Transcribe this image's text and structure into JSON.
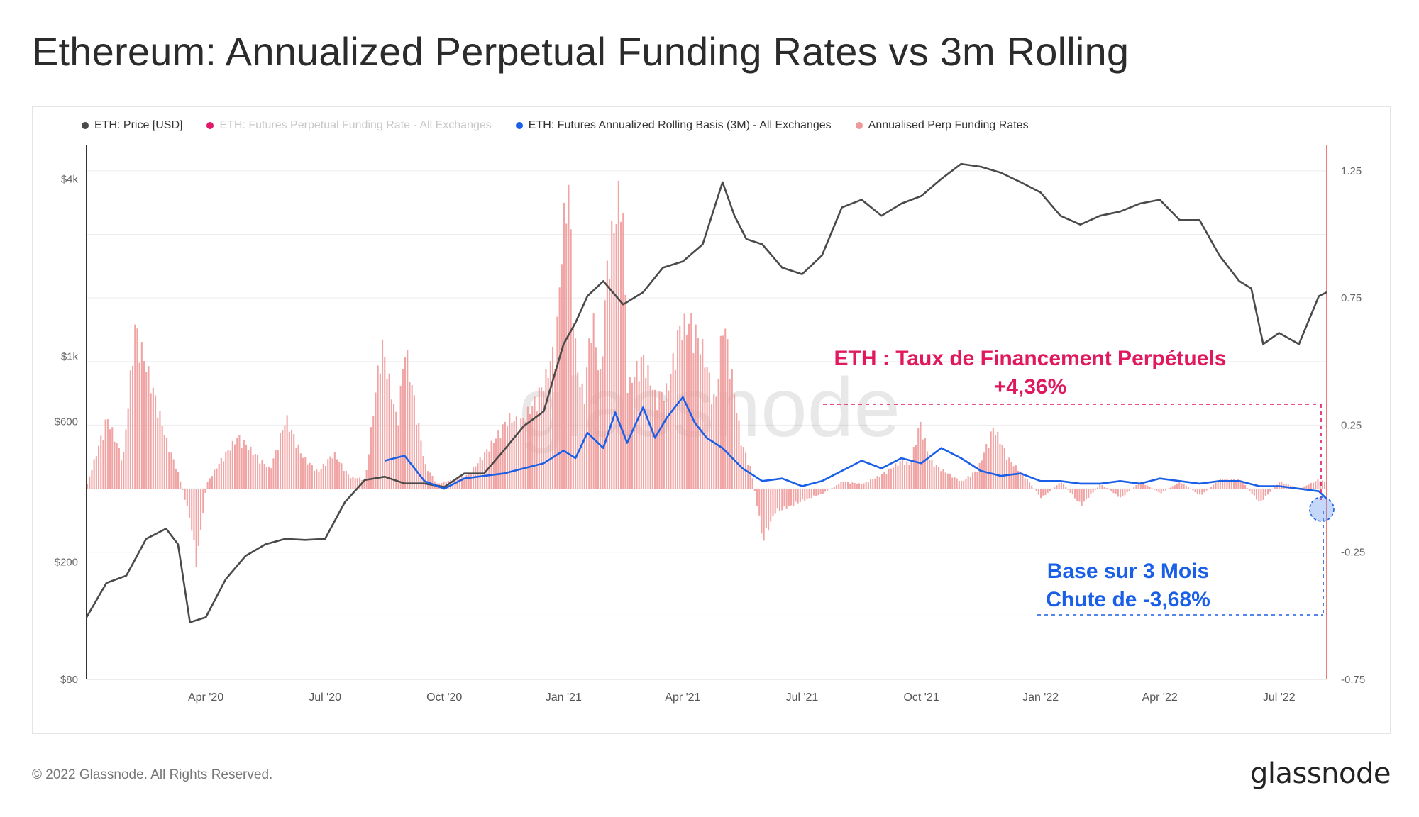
{
  "title": "Ethereum: Annualized Perpetual Funding Rates vs 3m Rolling",
  "legend": [
    {
      "label": "ETH: Price [USD]",
      "color": "#4a4a4a",
      "muted": false
    },
    {
      "label": "ETH: Futures Perpetual Funding Rate - All Exchanges",
      "color": "#e0196b",
      "muted": true
    },
    {
      "label": "ETH: Futures Annualized Rolling Basis (3M) - All Exchanges",
      "color": "#1a5fe8",
      "muted": false
    },
    {
      "label": "Annualised Perp Funding Rates",
      "color": "#ef9a9a",
      "muted": false
    }
  ],
  "watermark": "glassnode",
  "annotations": {
    "funding_line1": "ETH : Taux de Financement Perpétuels",
    "funding_line2": "+4,36%",
    "basis_line1": "Base sur 3 Mois",
    "basis_line2": "Chute de -3,68%",
    "funding_color": "#e0195f",
    "basis_color": "#1a5fe8"
  },
  "footer": "© 2022 Glassnode. All Rights Reserved.",
  "brand": "glassnode",
  "chart_data": {
    "type": "line",
    "x_ticks": [
      "Apr '20",
      "Jul '20",
      "Oct '20",
      "Jan '21",
      "Apr '21",
      "Jul '21",
      "Oct '21",
      "Jan '22",
      "Apr '22",
      "Jul '22"
    ],
    "x_tick_pos": [
      2.0,
      5.0,
      8.0,
      11.0,
      14.0,
      17.0,
      20.0,
      23.0,
      26.0,
      29.0
    ],
    "x_range": [
      -1.0,
      30.2
    ],
    "y_left": {
      "label": "ETH: Price [USD]",
      "scale": "log",
      "range": [
        80,
        5200
      ],
      "ticks": [
        80,
        200,
        600,
        1000,
        4000
      ],
      "tick_labels": [
        "$80",
        "$200",
        "$600",
        "$1k",
        "$4k"
      ]
    },
    "y_right": {
      "scale": "linear",
      "range": [
        -0.75,
        1.35
      ],
      "ticks": [
        -0.75,
        -0.25,
        0.25,
        0.75,
        1.25
      ],
      "tick_labels": [
        "-0.75",
        "-0.25",
        "0.25",
        "0.75",
        "1.25"
      ]
    },
    "series": [
      {
        "name": "ETH: Price [USD]",
        "axis": "left",
        "color": "#4a4a4a",
        "x": [
          -1.0,
          -0.5,
          0.0,
          0.5,
          1.0,
          1.3,
          1.6,
          2.0,
          2.5,
          3.0,
          3.5,
          4.0,
          4.5,
          5.0,
          5.5,
          6.0,
          6.5,
          7.0,
          7.5,
          8.0,
          8.5,
          9.0,
          9.5,
          10.0,
          10.5,
          11.0,
          11.3,
          11.6,
          12.0,
          12.5,
          13.0,
          13.5,
          14.0,
          14.5,
          15.0,
          15.3,
          15.6,
          16.0,
          16.5,
          17.0,
          17.5,
          18.0,
          18.5,
          19.0,
          19.5,
          20.0,
          20.5,
          21.0,
          21.5,
          22.0,
          22.5,
          23.0,
          23.5,
          24.0,
          24.5,
          25.0,
          25.5,
          26.0,
          26.5,
          27.0,
          27.5,
          28.0,
          28.3,
          28.6,
          29.0,
          29.5,
          30.0,
          30.2
        ],
        "values": [
          130,
          170,
          180,
          240,
          260,
          230,
          125,
          130,
          175,
          210,
          230,
          240,
          238,
          240,
          320,
          380,
          390,
          370,
          370,
          360,
          400,
          400,
          480,
          580,
          650,
          1100,
          1300,
          1600,
          1800,
          1500,
          1650,
          2000,
          2100,
          2400,
          3900,
          3000,
          2500,
          2400,
          2000,
          1900,
          2200,
          3200,
          3400,
          3000,
          3300,
          3500,
          4000,
          4500,
          4400,
          4200,
          3900,
          3600,
          3000,
          2800,
          3000,
          3100,
          3300,
          3400,
          2900,
          2900,
          2200,
          1800,
          1700,
          1100,
          1200,
          1100,
          1600,
          1650
        ]
      },
      {
        "name": "ETH: Futures Annualized Rolling Basis (3M) - All Exchanges",
        "axis": "right",
        "color": "#1a5fe8",
        "x": [
          6.5,
          7.0,
          7.5,
          8.0,
          8.5,
          9.0,
          9.5,
          10.0,
          10.5,
          11.0,
          11.3,
          11.6,
          12.0,
          12.3,
          12.6,
          13.0,
          13.3,
          13.6,
          14.0,
          14.3,
          14.6,
          15.0,
          15.5,
          16.0,
          16.5,
          17.0,
          17.5,
          18.0,
          18.5,
          19.0,
          19.5,
          20.0,
          20.5,
          21.0,
          21.5,
          22.0,
          22.5,
          23.0,
          23.5,
          24.0,
          24.5,
          25.0,
          25.5,
          26.0,
          26.5,
          27.0,
          27.5,
          28.0,
          28.5,
          29.0,
          29.5,
          30.0,
          30.2
        ],
        "values": [
          0.11,
          0.13,
          0.03,
          0.0,
          0.04,
          0.05,
          0.06,
          0.08,
          0.1,
          0.15,
          0.12,
          0.22,
          0.16,
          0.3,
          0.18,
          0.32,
          0.2,
          0.28,
          0.36,
          0.26,
          0.2,
          0.16,
          0.08,
          0.03,
          0.04,
          0.01,
          0.03,
          0.07,
          0.11,
          0.08,
          0.12,
          0.1,
          0.16,
          0.12,
          0.07,
          0.05,
          0.06,
          0.03,
          0.03,
          0.02,
          0.02,
          0.03,
          0.02,
          0.04,
          0.03,
          0.02,
          0.03,
          0.03,
          0.01,
          0.01,
          0.0,
          -0.01,
          -0.04
        ]
      },
      {
        "name": "Annualised Perp Funding Rates",
        "axis": "right",
        "type": "bar",
        "color": "#ef9a9a",
        "x": [
          -1.0,
          -0.5,
          -0.1,
          0.2,
          0.6,
          1.0,
          1.3,
          1.6,
          1.75,
          2.0,
          2.4,
          2.8,
          3.2,
          3.6,
          4.0,
          4.4,
          4.8,
          5.2,
          5.6,
          6.0,
          6.4,
          6.6,
          6.8,
          7.0,
          7.2,
          7.5,
          7.8,
          8.0,
          8.3,
          8.6,
          9.0,
          9.3,
          9.6,
          9.9,
          10.2,
          10.5,
          10.8,
          10.95,
          11.1,
          11.3,
          11.5,
          11.7,
          11.9,
          12.1,
          12.3,
          12.45,
          12.6,
          12.8,
          13.0,
          13.3,
          13.6,
          13.9,
          14.2,
          14.5,
          14.8,
          15.0,
          15.2,
          15.45,
          15.7,
          16.0,
          16.3,
          16.6,
          17.0,
          17.5,
          18.0,
          18.5,
          19.0,
          19.5,
          19.7,
          19.95,
          20.2,
          20.5,
          21.0,
          21.4,
          21.8,
          22.2,
          22.6,
          23.0,
          23.5,
          24.0,
          24.5,
          25.0,
          25.5,
          26.0,
          26.5,
          27.0,
          27.5,
          28.0,
          28.5,
          29.0,
          29.5,
          30.0,
          30.2
        ],
        "values": [
          0.02,
          0.3,
          0.12,
          0.68,
          0.45,
          0.2,
          0.06,
          -0.14,
          -0.32,
          0.02,
          0.13,
          0.22,
          0.15,
          0.08,
          0.3,
          0.14,
          0.07,
          0.15,
          0.05,
          0.04,
          0.62,
          0.45,
          0.28,
          0.6,
          0.4,
          0.1,
          0.02,
          0.03,
          0.04,
          0.06,
          0.15,
          0.22,
          0.3,
          0.28,
          0.35,
          0.45,
          0.62,
          1.05,
          1.3,
          0.52,
          0.38,
          0.75,
          0.45,
          0.98,
          1.15,
          1.3,
          0.42,
          0.5,
          0.55,
          0.38,
          0.42,
          0.68,
          0.7,
          0.58,
          0.35,
          0.72,
          0.5,
          0.2,
          0.08,
          -0.22,
          -0.1,
          -0.08,
          -0.05,
          -0.02,
          0.03,
          0.02,
          0.06,
          0.12,
          0.1,
          0.28,
          0.12,
          0.08,
          0.03,
          0.08,
          0.26,
          0.12,
          0.05,
          -0.04,
          0.03,
          -0.07,
          0.02,
          -0.04,
          0.03,
          -0.02,
          0.03,
          -0.03,
          0.04,
          0.04,
          -0.06,
          0.03,
          0.0,
          0.04,
          0.02
        ]
      }
    ]
  }
}
